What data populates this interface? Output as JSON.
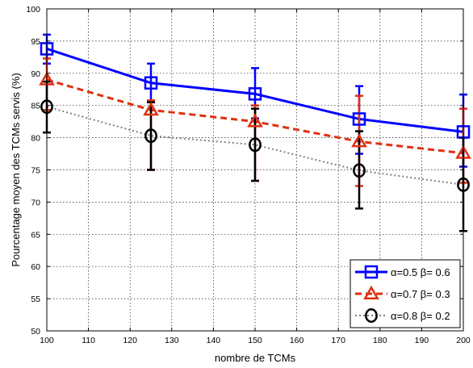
{
  "chart_data": {
    "type": "line",
    "xlabel": "nombre de TCMs",
    "ylabel": "Pourcentage moyen des TCMs servis (%)",
    "xlim": [
      100,
      200
    ],
    "ylim": [
      50,
      100
    ],
    "xticks": [
      100,
      110,
      120,
      130,
      140,
      150,
      160,
      170,
      180,
      190,
      200
    ],
    "yticks": [
      50,
      55,
      60,
      65,
      70,
      75,
      80,
      85,
      90,
      95,
      100
    ],
    "grid": true,
    "legend_position": "bottom-right",
    "x": [
      100,
      125,
      150,
      175,
      200
    ],
    "series": [
      {
        "name": "α=0.5 β= 0.6",
        "values": [
          93.8,
          88.5,
          86.8,
          82.9,
          80.9
        ],
        "err_low": [
          91.5,
          85.5,
          83.0,
          77.5,
          75.5
        ],
        "err_high": [
          96.0,
          91.5,
          90.8,
          88.0,
          86.7
        ],
        "color": "#0000ff",
        "marker": "square",
        "line_style": "solid"
      },
      {
        "name": "α=0.7 β= 0.3",
        "values": [
          89.0,
          84.3,
          82.5,
          79.4,
          77.6
        ],
        "err_low": [
          84.3,
          75.0,
          73.3,
          72.5,
          73.0
        ],
        "err_high": [
          92.3,
          85.8,
          85.0,
          86.5,
          84.5
        ],
        "color": "#e03010",
        "marker": "triangle",
        "line_style": "dashed"
      },
      {
        "name": "α=0.8 β= 0.2",
        "values": [
          84.8,
          80.3,
          78.9,
          74.9,
          72.7
        ],
        "err_low": [
          80.8,
          75.0,
          73.3,
          69.0,
          65.5
        ],
        "err_high": [
          88.7,
          85.5,
          84.5,
          81.0,
          80.0
        ],
        "color": "#000000",
        "marker": "circle",
        "line_style": "dotted",
        "line_color": "#808080"
      }
    ]
  }
}
